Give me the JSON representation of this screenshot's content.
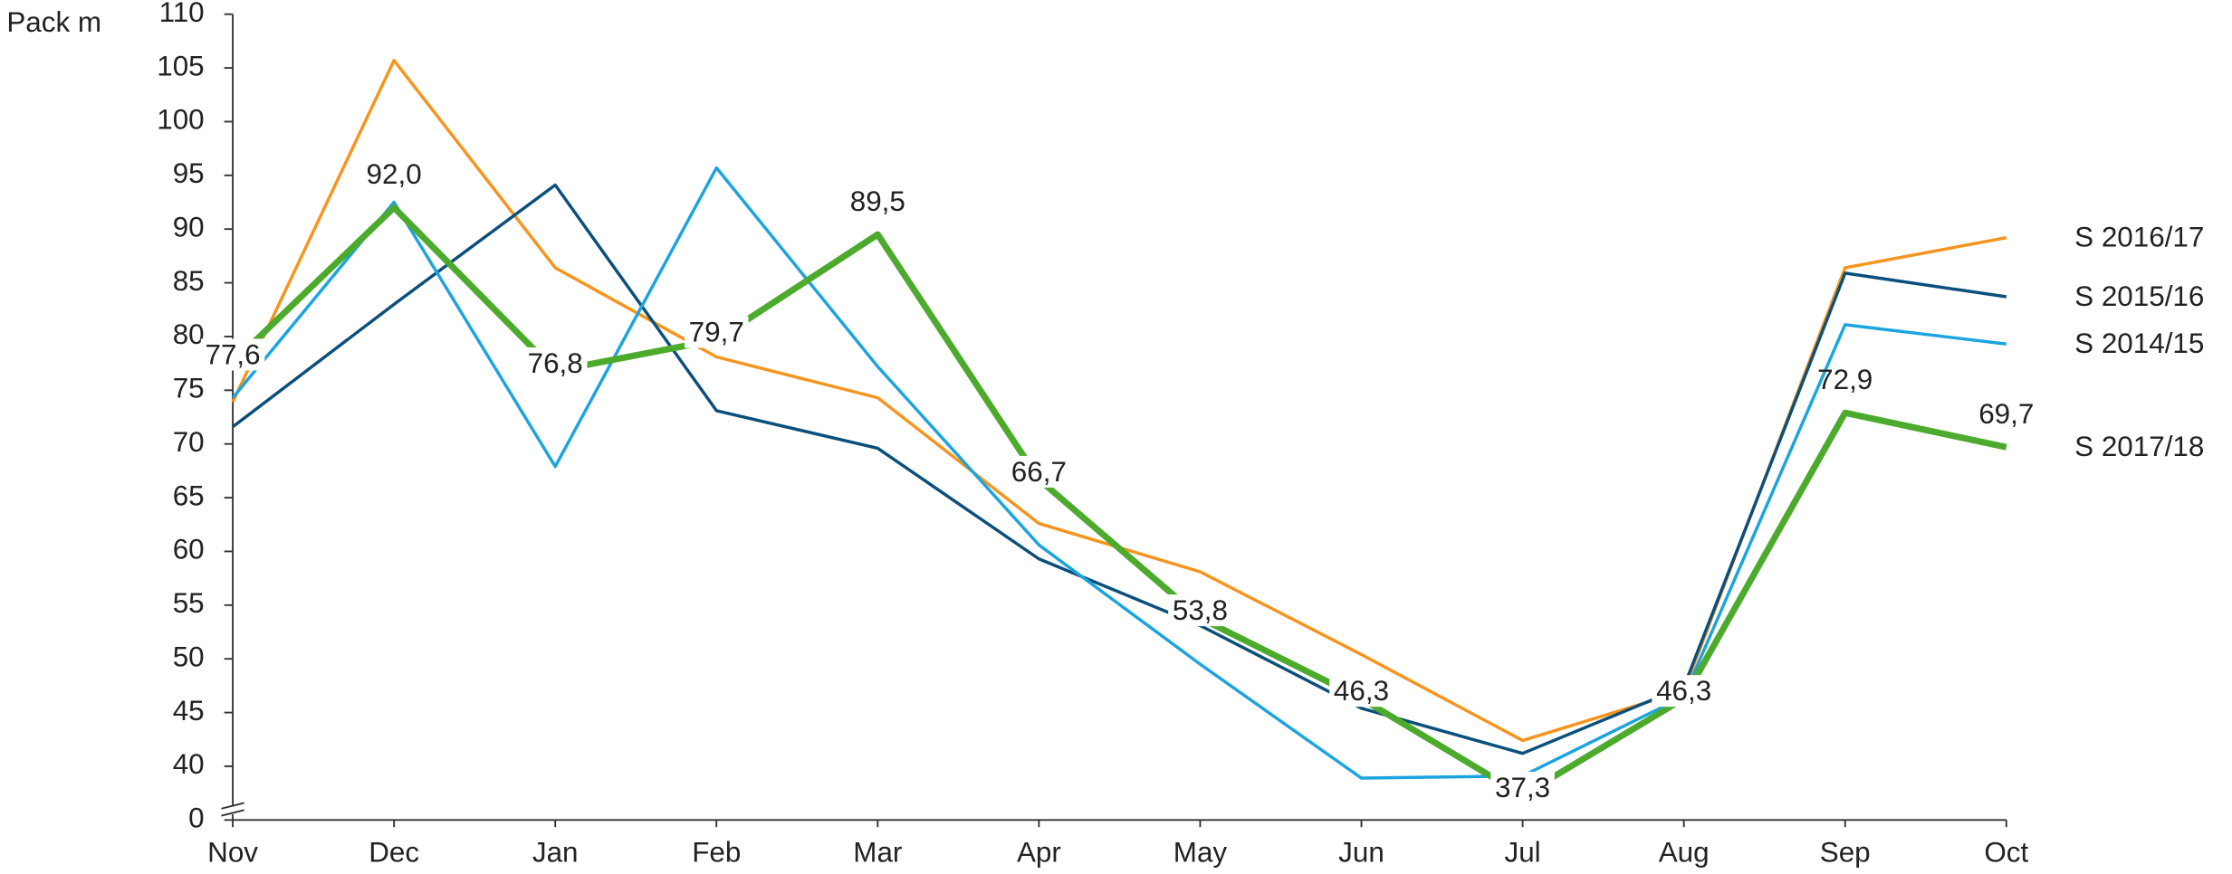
{
  "chart_data": {
    "type": "line",
    "y_axis_label": "Pack m",
    "categories": [
      "Nov",
      "Dec",
      "Jan",
      "Feb",
      "Mar",
      "Apr",
      "May",
      "Jun",
      "Jul",
      "Aug",
      "Sep",
      "Oct"
    ],
    "ylim": [
      35,
      110
    ],
    "yticks": [
      40,
      45,
      50,
      55,
      60,
      65,
      70,
      75,
      80,
      85,
      90,
      95,
      100,
      105,
      110
    ],
    "axis_break": true,
    "axis_break_label": "0",
    "series": [
      {
        "name": "S 2016/17",
        "color": "#f7941d",
        "width": 2.2,
        "values": [
          73.9,
          105.7,
          86.4,
          78.1,
          74.3,
          62.6,
          58.1,
          50.4,
          42.4,
          47.0,
          86.4,
          89.2
        ]
      },
      {
        "name": "S 2015/16",
        "color": "#0b4f7c",
        "width": 2.2,
        "values": [
          71.6,
          83.0,
          94.1,
          73.1,
          69.6,
          59.3,
          53.1,
          45.4,
          41.2,
          47.4,
          85.9,
          83.7
        ]
      },
      {
        "name": "S 2014/15",
        "color": "#1ba4de",
        "width": 2.2,
        "values": [
          74.3,
          92.5,
          67.9,
          95.7,
          77.2,
          60.6,
          49.5,
          38.9,
          39.1,
          46.5,
          81.1,
          79.3
        ]
      },
      {
        "name": "S 2017/18",
        "color": "#4cab2c",
        "width": 4.5,
        "values": [
          77.6,
          92.0,
          76.8,
          79.7,
          89.5,
          66.7,
          53.8,
          46.3,
          37.3,
          46.3,
          72.9,
          69.7
        ],
        "value_labels": [
          "77,6",
          "92,0",
          "76,8",
          "79,7",
          "89,5",
          "66,7",
          "53,8",
          "46,3",
          "37,3",
          "46,3",
          "72,9",
          "69,7"
        ]
      }
    ]
  }
}
